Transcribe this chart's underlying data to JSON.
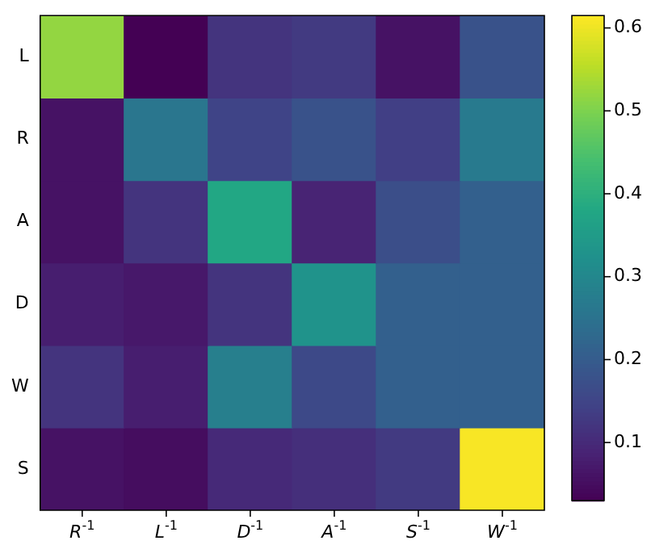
{
  "chart_data": {
    "type": "heatmap",
    "categories": [
      "R$^{-1}$",
      "L$^{-1}$",
      "D$^{-1}$",
      "A$^{-1}$",
      "S$^{-1}$",
      "W$^{-1}$"
    ],
    "y_categories": [
      "L",
      "R",
      "A",
      "D",
      "W",
      "S"
    ],
    "cells": [
      [
        0.52,
        0.03,
        0.12,
        0.13,
        0.06,
        0.18
      ],
      [
        0.06,
        0.26,
        0.15,
        0.18,
        0.14,
        0.27
      ],
      [
        0.06,
        0.12,
        0.38,
        0.09,
        0.17,
        0.21
      ],
      [
        0.08,
        0.07,
        0.12,
        0.33,
        0.21,
        0.21
      ],
      [
        0.12,
        0.08,
        0.28,
        0.16,
        0.21,
        0.21
      ],
      [
        0.06,
        0.05,
        0.1,
        0.11,
        0.13,
        0.61
      ]
    ],
    "clim": [
      0.03,
      0.615
    ],
    "cticks": [
      0.1,
      0.2,
      0.3,
      0.4,
      0.5,
      0.6
    ]
  }
}
